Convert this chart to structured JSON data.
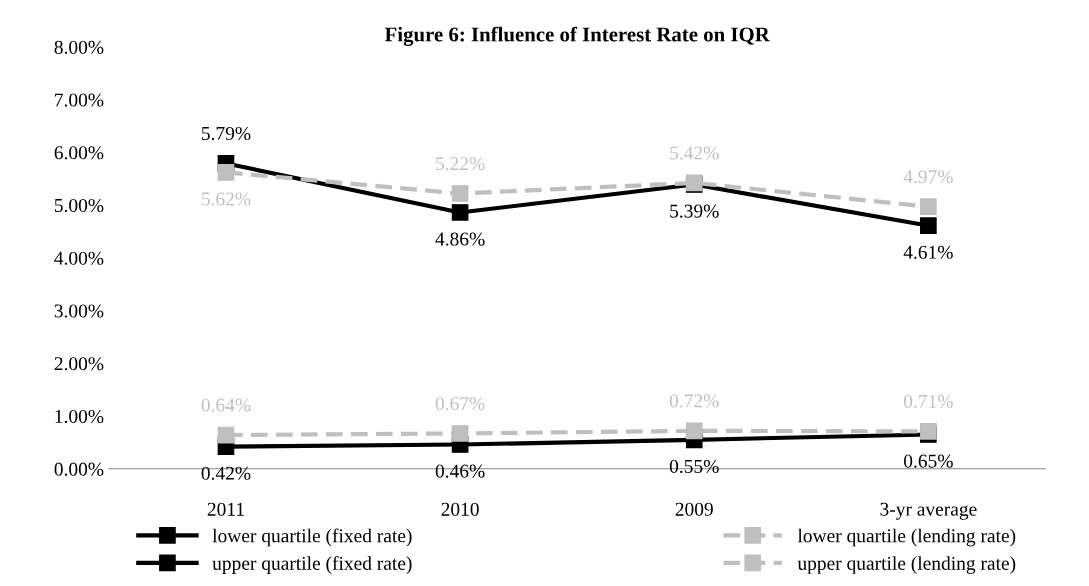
{
  "chart_data": {
    "type": "line",
    "title": "Figure 6: Influence of Interest Rate on IQR",
    "categories": [
      "2011",
      "2010",
      "2009",
      "3-yr average"
    ],
    "ylim": [
      0,
      8
    ],
    "yticks": [
      {
        "value": 0,
        "label": "0.00%"
      },
      {
        "value": 1,
        "label": "1.00%"
      },
      {
        "value": 2,
        "label": "2.00%"
      },
      {
        "value": 3,
        "label": "3.00%"
      },
      {
        "value": 4,
        "label": "4.00%"
      },
      {
        "value": 5,
        "label": "5.00%"
      },
      {
        "value": 6,
        "label": "6.00%"
      },
      {
        "value": 7,
        "label": "7.00%"
      },
      {
        "value": 8,
        "label": "8.00%"
      }
    ],
    "grid": false,
    "legend": "bottom",
    "marker": "square",
    "series": [
      {
        "name": "lower quartile (fixed rate)",
        "color": "#000000",
        "line_style": "solid",
        "values": [
          0.42,
          0.46,
          0.55,
          0.65
        ],
        "value_labels": [
          "0.42%",
          "0.46%",
          "0.55%",
          "0.65%"
        ]
      },
      {
        "name": "upper quartile (fixed rate)",
        "color": "#000000",
        "line_style": "solid",
        "values": [
          5.79,
          4.86,
          5.39,
          4.61
        ],
        "value_labels": [
          "5.79%",
          "4.86%",
          "5.39%",
          "4.61%"
        ]
      },
      {
        "name": "lower quartile (lending rate)",
        "color": "#bfbfbf",
        "line_style": "dashed",
        "values": [
          0.64,
          0.67,
          0.72,
          0.71
        ],
        "value_labels": [
          "0.64%",
          "0.67%",
          "0.72%",
          "0.71%"
        ]
      },
      {
        "name": "upper quartile (lending rate)",
        "color": "#bfbfbf",
        "line_style": "dashed",
        "values": [
          5.62,
          5.22,
          5.42,
          4.97
        ],
        "value_labels": [
          "5.62%",
          "5.22%",
          "5.42%",
          "4.97%"
        ]
      }
    ]
  }
}
